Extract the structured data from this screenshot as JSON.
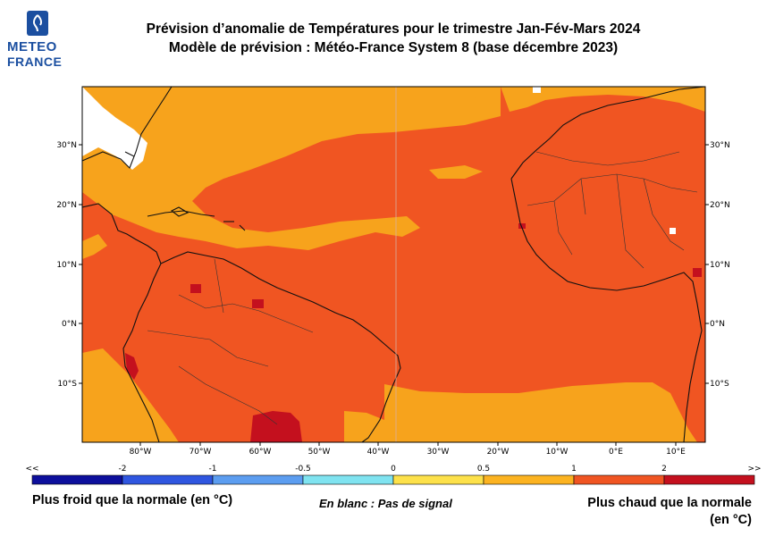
{
  "logo": {
    "line1": "METEO",
    "line2": "FRANCE"
  },
  "title": {
    "line1": "Prévision d’anomalie de Températures pour le trimestre Jan-Fév-Mars 2024",
    "line2": "Modèle de prévision : Météo-France System 8 (base décembre 2023)"
  },
  "map": {
    "lat_ticks": [
      "30°N",
      "20°N",
      "10°N",
      "0°N",
      "10°S"
    ],
    "lon_ticks": [
      "80°W",
      "70°W",
      "60°W",
      "50°W",
      "40°W",
      "30°W",
      "20°W",
      "10°W",
      "0°E",
      "10°E"
    ],
    "regions": {
      "no_signal": "#ffffff",
      "light": "#f7a31c",
      "base": "#f05522",
      "hot": "#c4101e"
    }
  },
  "colorbar": {
    "tick_labels": [
      "<<",
      "-2",
      "-1",
      "-0.5",
      "0",
      "0.5",
      "1",
      "2",
      ">>"
    ],
    "colors": [
      "#0d0f9c",
      "#2f56e0",
      "#5c9df0",
      "#7fe3f0",
      "#fde14a",
      "#fcb321",
      "#f05522",
      "#c4101e"
    ]
  },
  "legend": {
    "left": "Plus froid que la normale (en °C)",
    "middle": "En blanc : Pas de signal",
    "right": "Plus chaud que la normale (en °C)"
  }
}
